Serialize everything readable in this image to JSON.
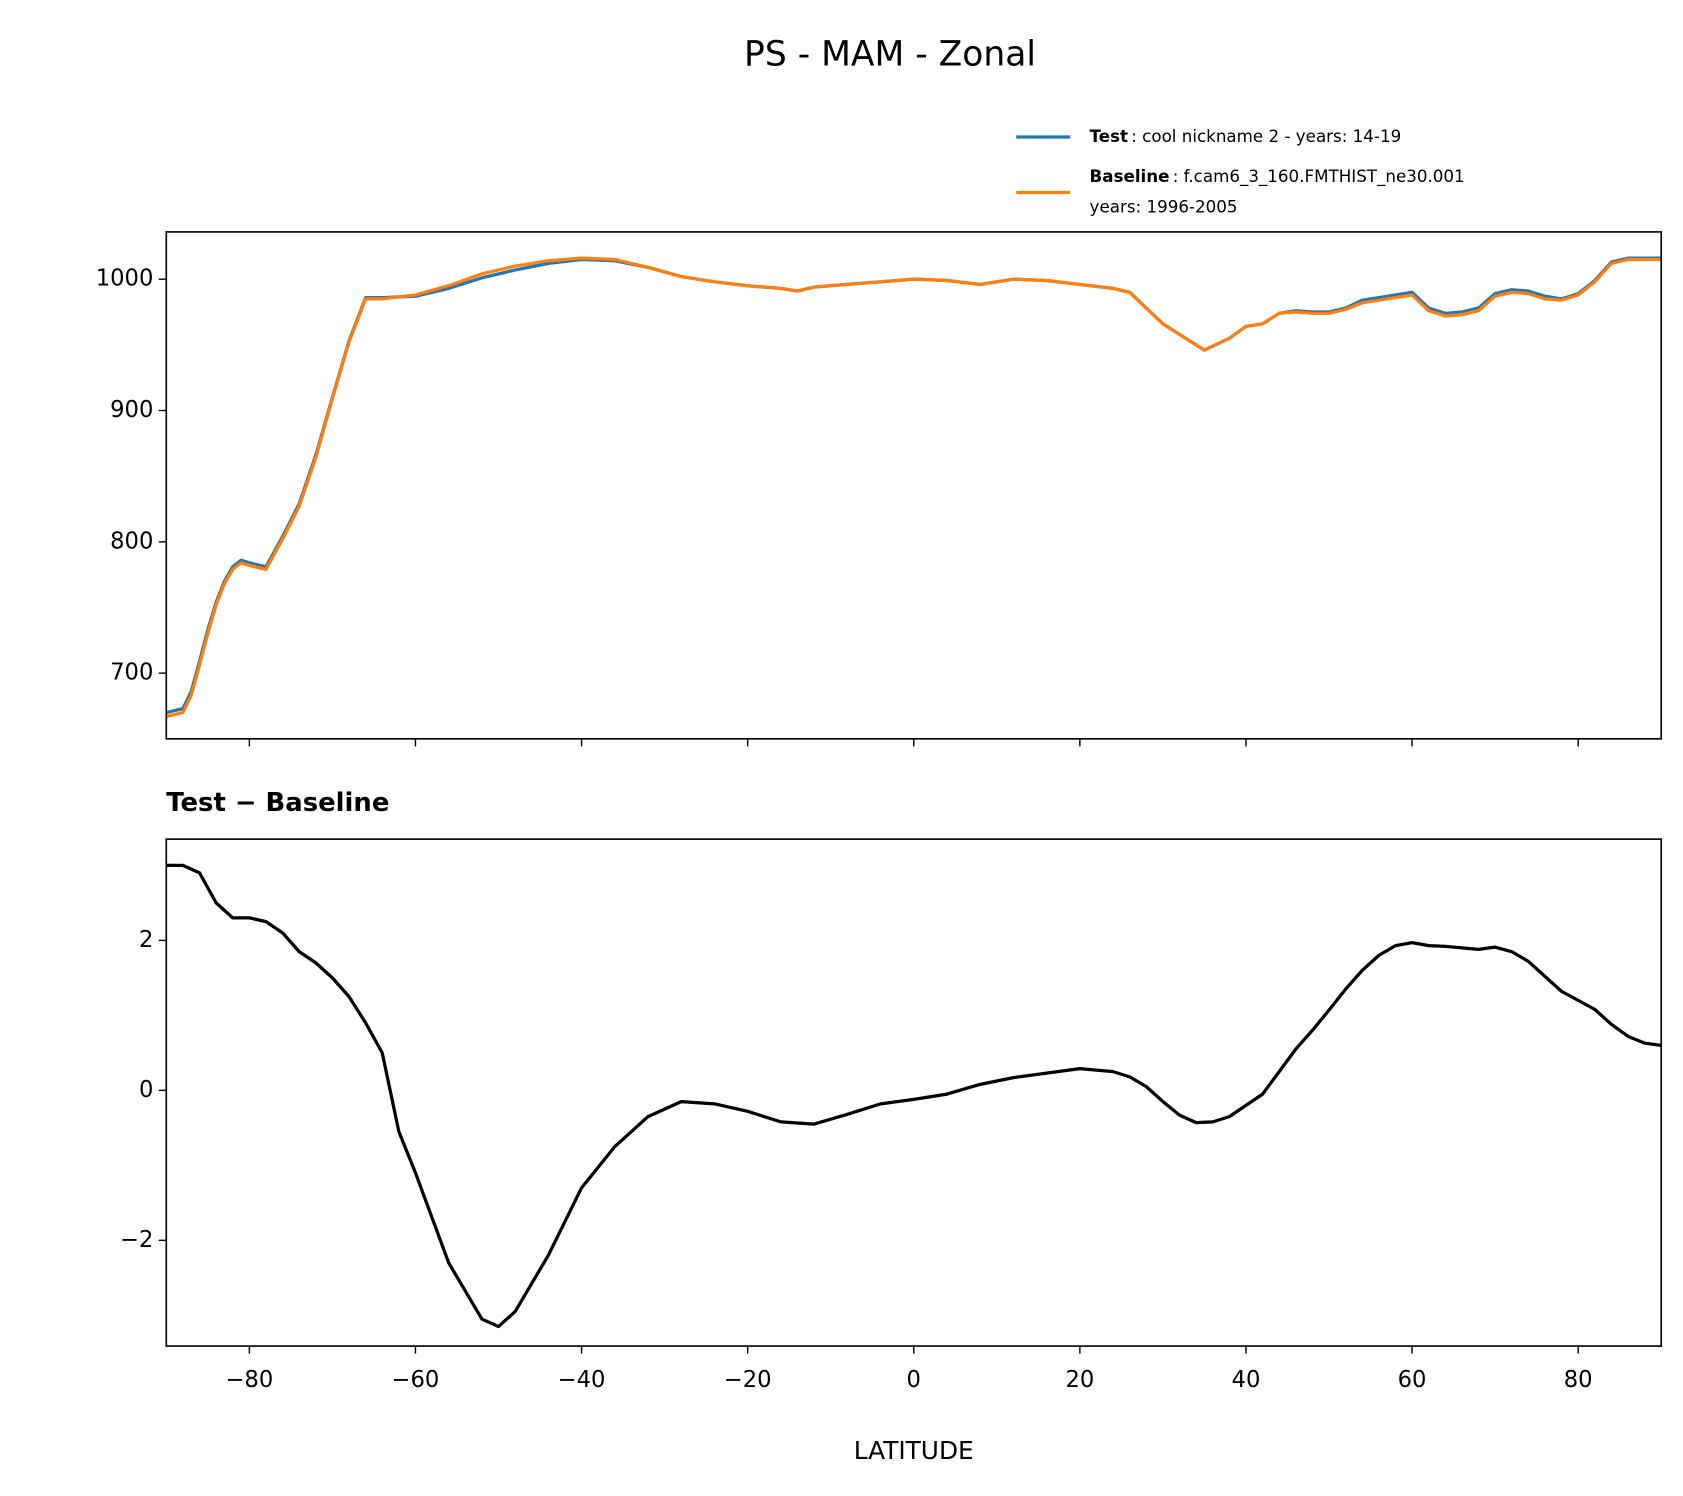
{
  "title": "PS - MAM - Zonal",
  "chart_data": [
    {
      "type": "line",
      "x": [
        -90,
        -88,
        -87,
        -86,
        -85,
        -84,
        -83,
        -82,
        -81,
        -80,
        -78,
        -76,
        -74,
        -72,
        -70,
        -68,
        -66,
        -64,
        -60,
        -56,
        -52,
        -48,
        -44,
        -40,
        -36,
        -32,
        -28,
        -24,
        -20,
        -16,
        -14,
        -12,
        -8,
        -4,
        0,
        4,
        8,
        12,
        16,
        20,
        24,
        26,
        28,
        30,
        32,
        34,
        35,
        38,
        40,
        42,
        44,
        46,
        48,
        50,
        52,
        54,
        56,
        58,
        60,
        62,
        64,
        66,
        68,
        70,
        72,
        74,
        76,
        78,
        80,
        82,
        84,
        86,
        90
      ],
      "series": [
        {
          "name": "Test",
          "legend_text": [
            ": cool nickname 2 - years: 14-19"
          ],
          "color": "#1f77b4",
          "values": [
            670,
            673,
            686,
            709,
            733,
            754,
            770,
            781,
            786,
            784,
            781,
            804,
            829,
            866,
            910,
            953,
            986,
            986,
            987,
            993,
            1001,
            1007,
            1012,
            1015,
            1014,
            1009,
            1002,
            998,
            995,
            993,
            991,
            994,
            996,
            998,
            1000,
            999,
            996,
            1000,
            999,
            996,
            993,
            990,
            978,
            966,
            958,
            950,
            946,
            955,
            964,
            966,
            974,
            976,
            975,
            975,
            978,
            984,
            986,
            988,
            990,
            978,
            974,
            975,
            978,
            989,
            992,
            991,
            987,
            985,
            989,
            999,
            1013,
            1016,
            1016
          ]
        },
        {
          "name": "Baseline",
          "legend_text": [
            ": f.cam6_3_160.FMTHIST_ne30.001",
            "years: 1996-2005"
          ],
          "color": "#ff7f0e",
          "values": [
            667,
            670,
            683,
            706,
            730,
            752,
            768,
            779,
            784,
            782,
            779,
            802,
            827,
            864,
            909,
            952,
            985,
            985,
            988,
            995,
            1004,
            1010,
            1014,
            1016,
            1015,
            1009,
            1002,
            998,
            995,
            993,
            991,
            994,
            996,
            998,
            1000,
            999,
            996,
            1000,
            999,
            996,
            993,
            990,
            978,
            966,
            958,
            950,
            946,
            955,
            964,
            966,
            974,
            975,
            974,
            974,
            977,
            982,
            984,
            986,
            988,
            976,
            972,
            973,
            976,
            987,
            990,
            989,
            985,
            984,
            988,
            998,
            1012,
            1015,
            1015
          ]
        }
      ],
      "xlim": [
        -90,
        90
      ],
      "xticks": [
        -80,
        -60,
        -40,
        -20,
        0,
        20,
        40,
        60,
        80
      ],
      "ylim": [
        650,
        1036
      ],
      "yticks": [
        700,
        800,
        900,
        1000
      ],
      "legend": "upper right",
      "grid": false
    },
    {
      "type": "line",
      "title": "Test − Baseline",
      "xlabel": "LATITUDE",
      "x": [
        -90,
        -88,
        -86,
        -84,
        -82,
        -80,
        -78,
        -76,
        -74,
        -72,
        -70,
        -68,
        -66,
        -64,
        -62,
        -60,
        -56,
        -52,
        -50,
        -48,
        -44,
        -40,
        -36,
        -32,
        -28,
        -24,
        -20,
        -16,
        -12,
        -8,
        -4,
        0,
        4,
        8,
        12,
        16,
        20,
        24,
        26,
        28,
        30,
        32,
        34,
        36,
        38,
        40,
        42,
        44,
        46,
        48,
        50,
        52,
        54,
        56,
        58,
        60,
        62,
        64,
        66,
        68,
        70,
        72,
        74,
        76,
        78,
        80,
        82,
        84,
        86,
        88,
        90
      ],
      "values": [
        3.0,
        3.0,
        2.9,
        2.5,
        2.3,
        2.3,
        2.25,
        2.1,
        1.85,
        1.7,
        1.5,
        1.25,
        0.9,
        0.5,
        -0.55,
        -1.1,
        -2.3,
        -3.05,
        -3.15,
        -2.95,
        -2.2,
        -1.3,
        -0.75,
        -0.35,
        -0.15,
        -0.18,
        -0.28,
        -0.42,
        -0.45,
        -0.32,
        -0.18,
        -0.12,
        -0.05,
        0.08,
        0.17,
        0.23,
        0.29,
        0.25,
        0.18,
        0.05,
        -0.15,
        -0.33,
        -0.43,
        -0.42,
        -0.35,
        -0.2,
        -0.05,
        0.25,
        0.55,
        0.8,
        1.07,
        1.35,
        1.6,
        1.8,
        1.93,
        1.97,
        1.93,
        1.92,
        1.9,
        1.88,
        1.91,
        1.85,
        1.72,
        1.52,
        1.32,
        1.2,
        1.08,
        0.88,
        0.72,
        0.63,
        0.6
      ],
      "color": "#000000",
      "xlim": [
        -90,
        90
      ],
      "xticks": [
        {
          "value": -80,
          "label": "−80"
        },
        {
          "value": -60,
          "label": "−60"
        },
        {
          "value": -40,
          "label": "−40"
        },
        {
          "value": -20,
          "label": "−20"
        },
        0,
        20,
        40,
        60,
        80
      ],
      "ylim": [
        -3.41,
        3.35
      ],
      "yticks": [
        {
          "value": -2,
          "label": "−2"
        },
        0,
        2
      ],
      "grid": false
    }
  ]
}
